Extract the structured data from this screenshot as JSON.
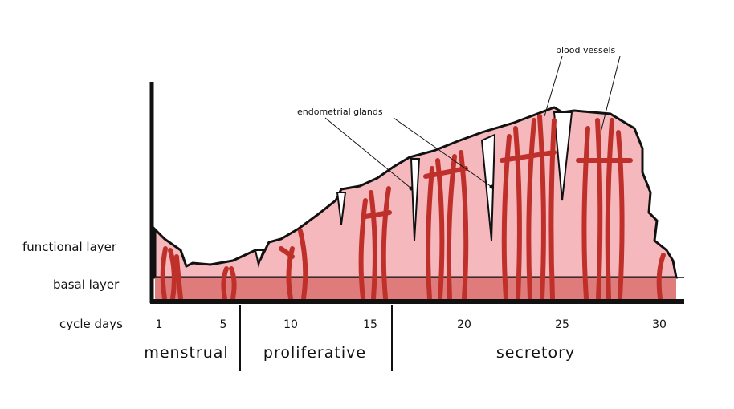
{
  "labels": {
    "functional_layer": "functional layer",
    "basal_layer": "basal layer",
    "cycle_days": "cycle days"
  },
  "days": [
    1,
    5,
    10,
    15,
    20,
    25,
    30
  ],
  "phases": [
    "menstrual",
    "proliferative",
    "secretory"
  ],
  "annotations": {
    "blood_vessels": "blood vessels",
    "endometrial_glands": "endometrial glands"
  }
}
